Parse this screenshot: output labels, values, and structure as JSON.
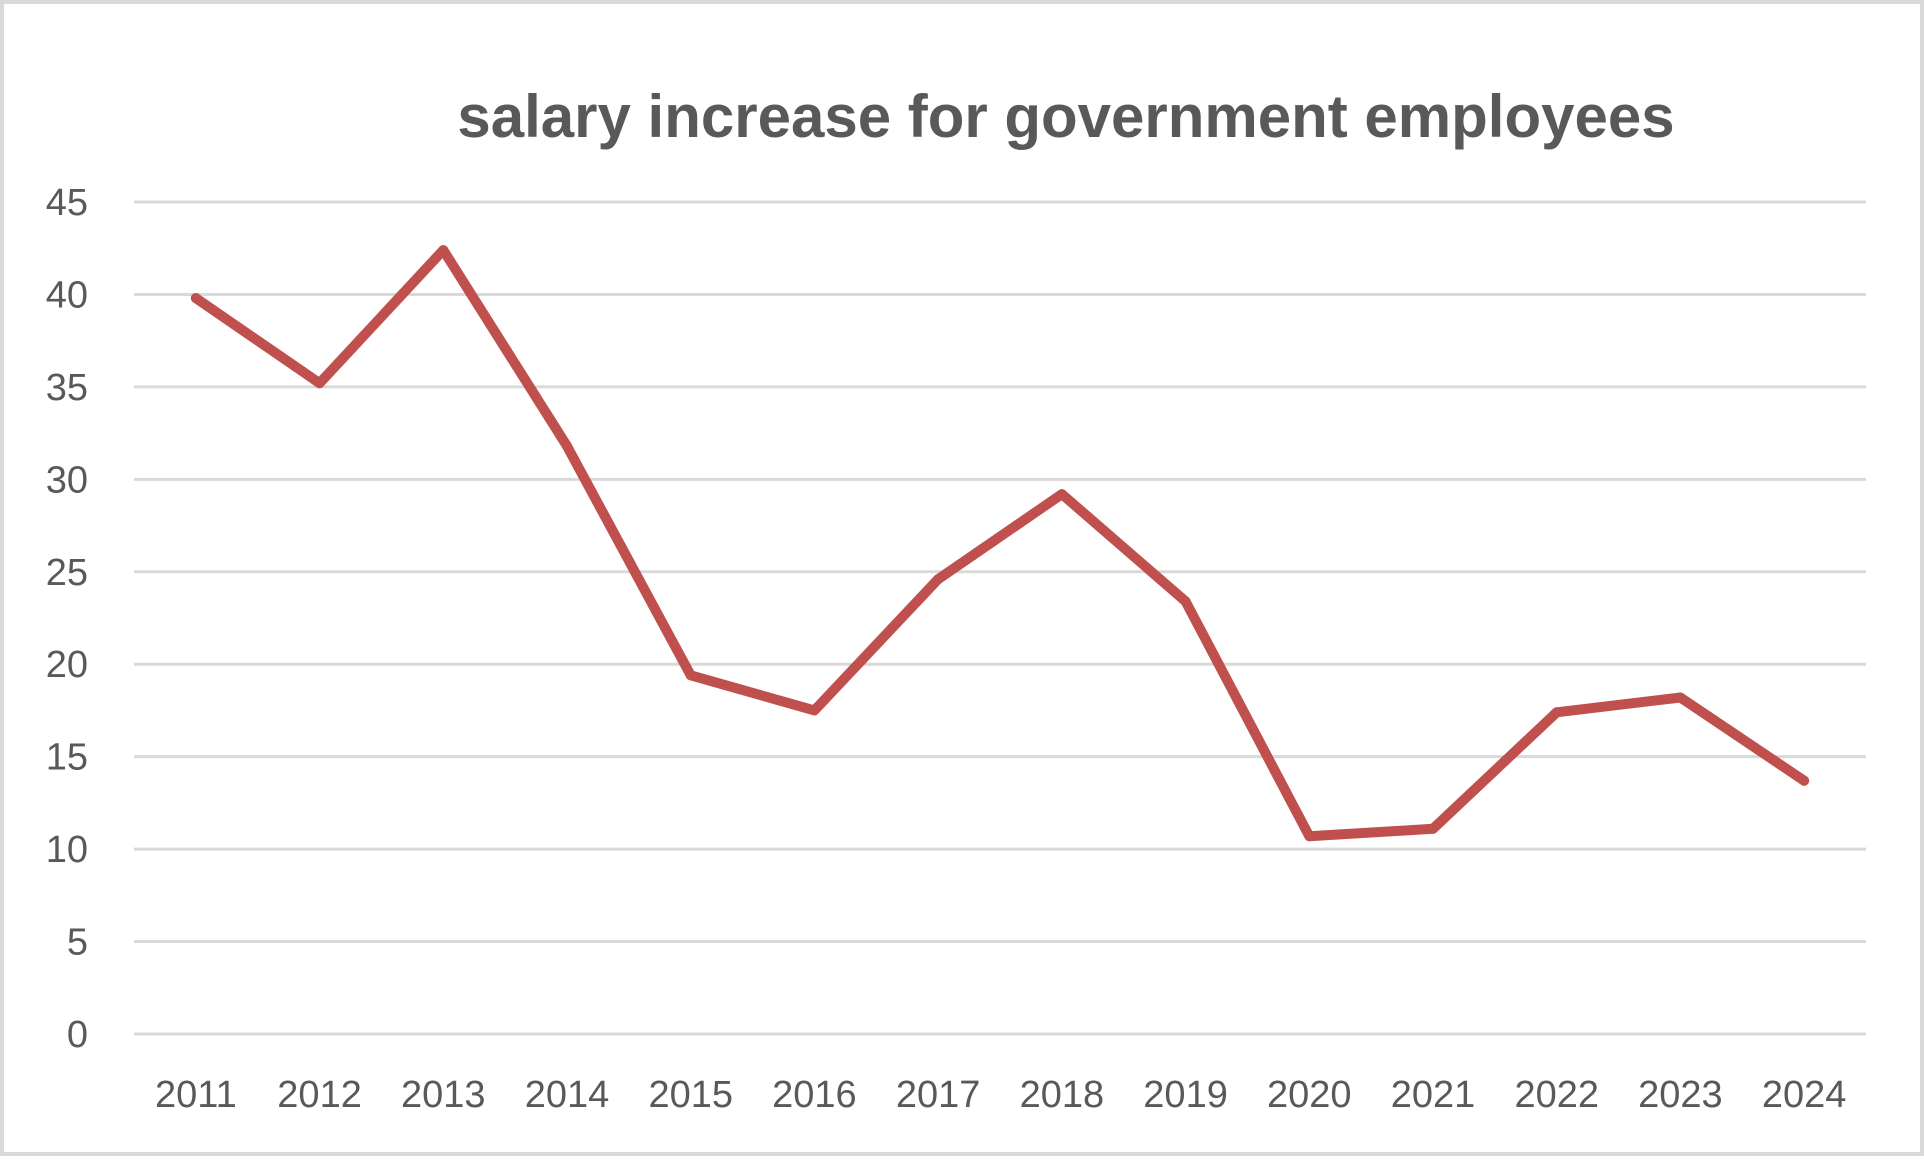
{
  "chart_data": {
    "type": "line",
    "title": "salary increase for government employees",
    "xlabel": "",
    "ylabel": "",
    "categories": [
      "2011",
      "2012",
      "2013",
      "2014",
      "2015",
      "2016",
      "2017",
      "2018",
      "2019",
      "2020",
      "2021",
      "2022",
      "2023",
      "2024"
    ],
    "series": [
      {
        "name": "salary increase",
        "color": "#c0504d",
        "values": [
          39.8,
          35.2,
          42.4,
          31.8,
          19.4,
          17.5,
          24.6,
          29.2,
          23.4,
          10.7,
          11.1,
          17.4,
          18.2,
          13.7
        ]
      }
    ],
    "ylim": [
      0,
      45
    ],
    "yticks": [
      "0",
      "5",
      "10",
      "15",
      "20",
      "25",
      "30",
      "35",
      "40",
      "45"
    ],
    "grid": true,
    "legend": "none",
    "colors": {
      "title": "#595959",
      "ticks": "#595959",
      "grid": "#d9d9d9",
      "border": "#d9d9d9"
    }
  }
}
